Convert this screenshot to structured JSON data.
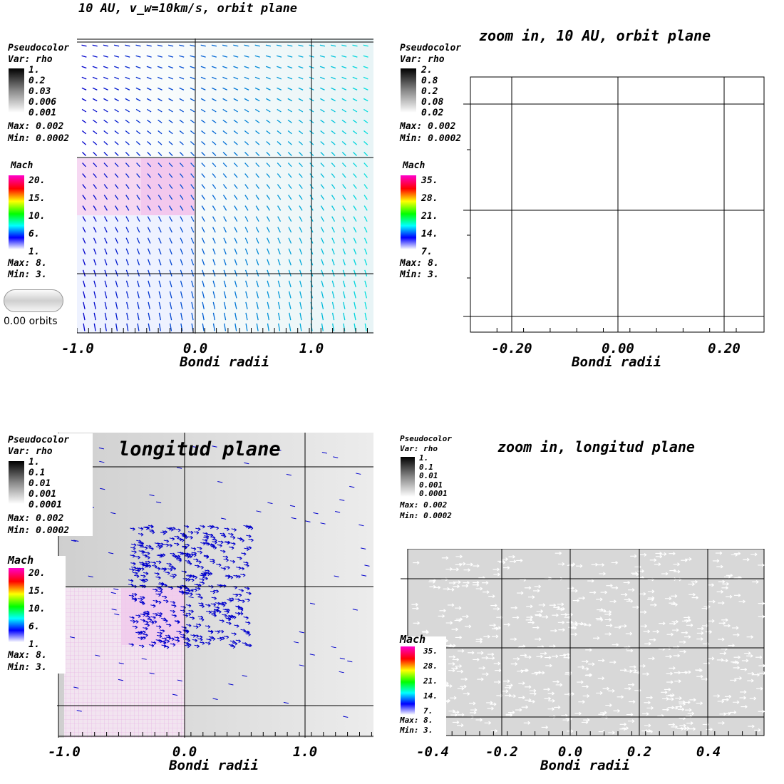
{
  "panels": [
    {
      "id": "p1",
      "title": "10 AU, v_w=10km/s, orbit plane",
      "legend": {
        "plot": "Pseudocolor",
        "var": "Var: rho",
        "rho_ticks": [
          "1.",
          "0.2",
          "0.03",
          "0.006",
          "0.001"
        ],
        "rho_max": "Max:  0.002",
        "rho_min": "Min:  0.0002",
        "mach_label": "Mach",
        "mach_ticks": [
          "20.",
          "15.",
          "10.",
          "6.",
          "1."
        ],
        "mach_max": "Max:  8.",
        "mach_min": "Min:  3."
      },
      "time_label": "0.00 orbits",
      "x_ticks": [
        "-1.0",
        "0.0",
        "1.0"
      ],
      "x_label": "Bondi radii"
    },
    {
      "id": "p2",
      "title": "zoom in, 10 AU, orbit plane",
      "legend": {
        "plot": "Pseudocolor",
        "var": "Var: rho",
        "rho_ticks": [
          "2.",
          "0.8",
          "0.2",
          "0.08",
          "0.02"
        ],
        "rho_max": "Max:  0.002",
        "rho_min": "Min:  0.0002",
        "mach_label": "Mach",
        "mach_ticks": [
          "35.",
          "28.",
          "21.",
          "14.",
          "7."
        ],
        "mach_max": "Max:  8.",
        "mach_min": "Min:  3."
      },
      "x_ticks": [
        "-0.20",
        "0.00",
        "0.20"
      ],
      "x_label": "Bondi radii"
    },
    {
      "id": "p3",
      "title": "longitud plane",
      "legend": {
        "plot": "Pseudocolor",
        "var": "Var: rho",
        "rho_ticks": [
          "1.",
          "0.1",
          "0.01",
          "0.001",
          "0.0001"
        ],
        "rho_max": "Max:  0.002",
        "rho_min": "Min:  0.0002",
        "mach_label": "Mach",
        "mach_ticks": [
          "20.",
          "15.",
          "10.",
          "6.",
          "1."
        ],
        "mach_max": "Max:  8.",
        "mach_min": "Min:  3."
      },
      "x_ticks": [
        "-1.0",
        "0.0",
        "1.0"
      ],
      "x_label": "Bondi radii"
    },
    {
      "id": "p4",
      "title": "zoom in, longitud plane",
      "legend": {
        "plot": "Pseudocolor",
        "var": "Var: rho",
        "rho_ticks": [
          "1.",
          "0.1",
          "0.01",
          "0.001",
          "0.0001"
        ],
        "rho_max": "Max:  0.002",
        "rho_min": "Min:  0.0002",
        "mach_label": "Mach",
        "mach_ticks": [
          "35.",
          "28.",
          "21.",
          "14.",
          "7."
        ],
        "mach_max": "Max:  8.",
        "mach_min": "Min:  3."
      },
      "x_ticks": [
        "-0.4",
        "-0.2",
        "0.0",
        "0.2",
        "0.4"
      ],
      "x_label": "Bondi radii"
    }
  ],
  "colors": {
    "arrow_blue": "#0000cc",
    "arrow_cyan": "#00dddd",
    "arrow_white": "#ffffff",
    "field_gray": "#d8d8d8",
    "grid": "#000000"
  }
}
